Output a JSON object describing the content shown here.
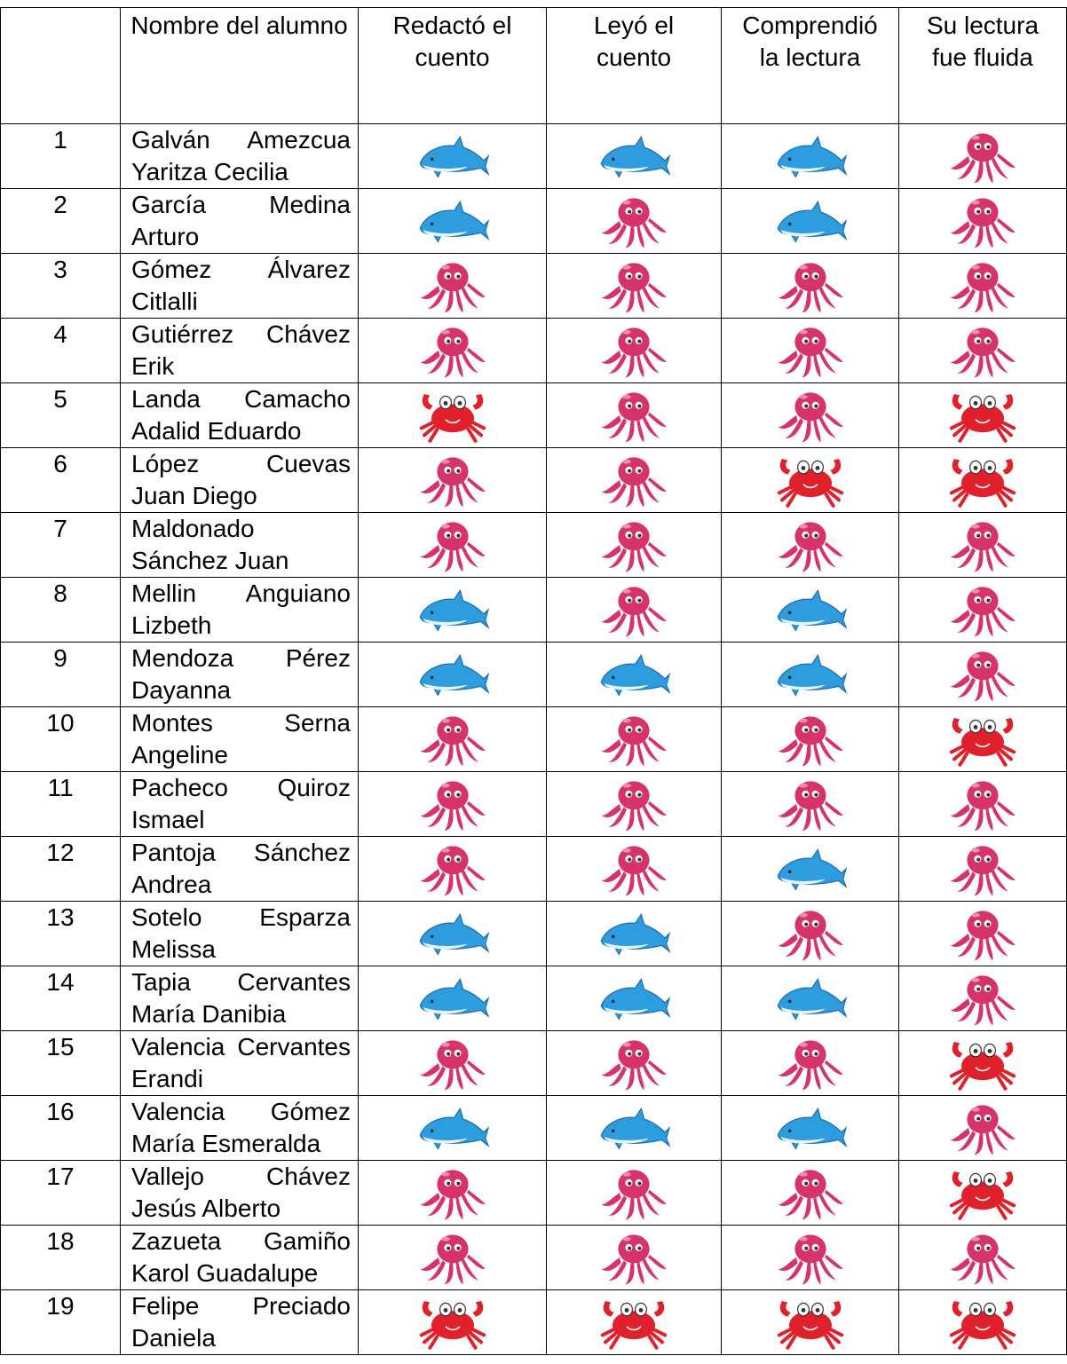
{
  "table": {
    "header": [
      "Nombre del alumno",
      "Redactó el cuento",
      "Leyó el cuento",
      "Comprendió la lectura",
      "Su lectura fue fluida"
    ],
    "rows": [
      {
        "number": 1,
        "name": "Galván Amezcua Yaritza Cecilia"
      },
      {
        "number": 2,
        "name": "García Medina Arturo"
      },
      {
        "number": 3,
        "name": "Gómez Álvarez Citlalli"
      },
      {
        "number": 4,
        "name": "Gutiérrez Chávez Erik"
      },
      {
        "number": 5,
        "name": "Landa Camacho Adalid Eduardo"
      },
      {
        "number": 6,
        "name": "López Cuevas Juan Diego"
      },
      {
        "number": 7,
        "name": "Maldonado Sánchez Juan"
      },
      {
        "number": 8,
        "name": "Mellin Anguiano Lizbeth"
      },
      {
        "number": 9,
        "name": "Mendoza Pérez Dayanna"
      },
      {
        "number": 10,
        "name": "Montes Serna Angeline"
      },
      {
        "number": 11,
        "name": "Pacheco Quiroz Ismael"
      },
      {
        "number": 12,
        "name": "Pantoja Sánchez Andrea"
      },
      {
        "number": 13,
        "name": "Sotelo Esparza Melissa"
      },
      {
        "number": 14,
        "name": "Tapia Cervantes María Danibia"
      },
      {
        "number": 15,
        "name": "Valencia Cervantes Erandi"
      },
      {
        "number": 16,
        "name": "Valencia Gómez María Esmeralda"
      },
      {
        "number": 17,
        "name": "Vallejo Chávez Jesús Alberto"
      },
      {
        "number": 18,
        "name": "Zazueta Gamiño Karol Guadalupe"
      },
      {
        "number": 19,
        "name": "Felipe Preciado Daniela"
      }
    ]
  }
}
